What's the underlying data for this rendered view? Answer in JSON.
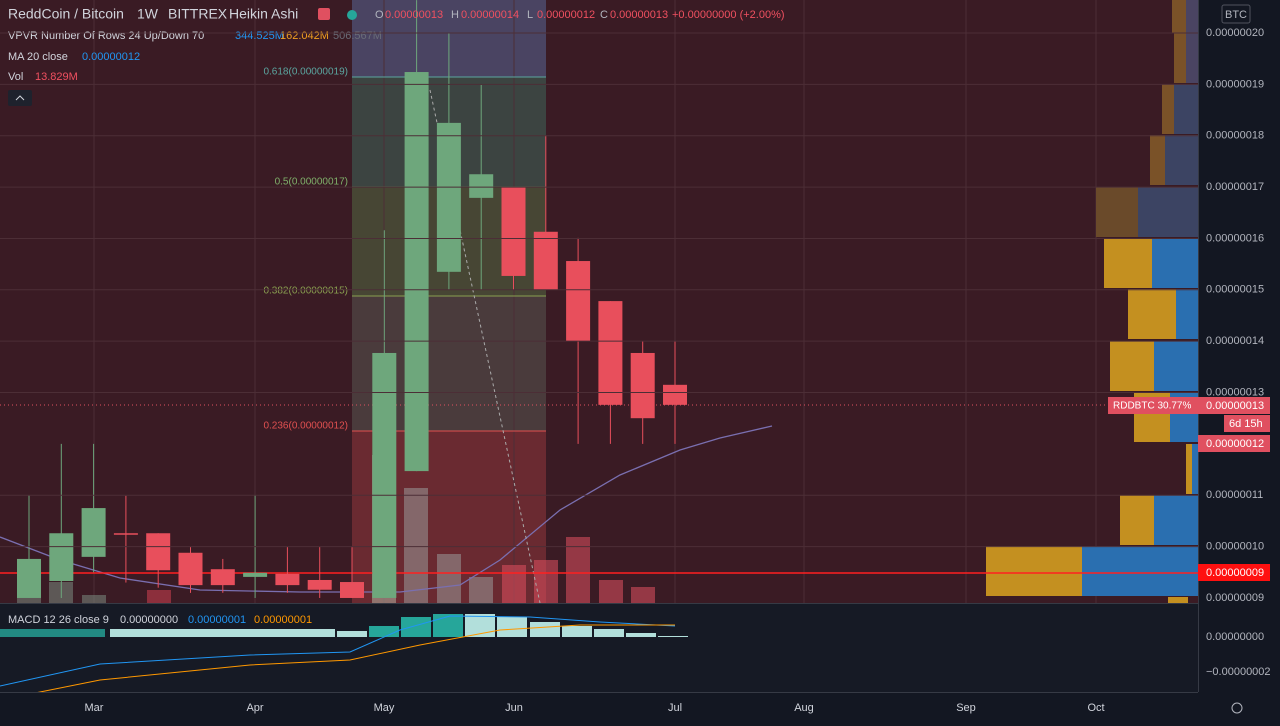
{
  "header": {
    "symbol": "ReddCoin / Bitcoin",
    "interval": "1W",
    "exchange": "BITTREX",
    "style": "Heikin Ashi",
    "o_label": "O",
    "o_value": "0.00000013",
    "h_label": "H",
    "h_value": "0.00000014",
    "l_label": "L",
    "l_value": "0.00000012",
    "c_label": "C",
    "c_value": "0.00000013",
    "change": "+0.00000000 (+2.00%)"
  },
  "indicators": {
    "vpvr": "VPVR Number Of Rows 24 Up/Down 70",
    "vpvr_up": "344.525M",
    "vpvr_down": "162.042M",
    "vpvr_total": "506.567M",
    "ma": "MA 20 close",
    "ma_value": "0.00000012",
    "vol": "Vol",
    "vol_value": "13.829M",
    "macd": "MACD 12 26 close 9",
    "macd_hist": "0.00000000",
    "macd_line": "0.00000001",
    "macd_signal": "0.00000001"
  },
  "fib_levels": [
    "0.618(0.00000019)",
    "0.5(0.00000017)",
    "0.382(0.00000015)",
    "0.236(0.00000012)"
  ],
  "price_axis": {
    "currency": "BTC",
    "ylim": [
      8.9e-08,
      2.064e-07
    ],
    "ticks": [
      {
        "value": 2e-07,
        "label": "0.00000020"
      },
      {
        "value": 1.9e-07,
        "label": "0.00000019"
      },
      {
        "value": 1.8e-07,
        "label": "0.00000018"
      },
      {
        "value": 1.7e-07,
        "label": "0.00000017"
      },
      {
        "value": 1.6e-07,
        "label": "0.00000016"
      },
      {
        "value": 1.5e-07,
        "label": "0.00000015"
      },
      {
        "value": 1.4e-07,
        "label": "0.00000014"
      },
      {
        "value": 1.3e-07,
        "label": "0.00000013"
      },
      {
        "value": 1.1e-07,
        "label": "0.00000011"
      },
      {
        "value": 1e-07,
        "label": "0.00000010"
      }
    ],
    "last_price_tag": "RDDBTC 30.77%",
    "last_price": "0.00000013",
    "countdown": "6d 15h",
    "ma_tag": "0.00000012",
    "level_tag": "0.00000009"
  },
  "macd_axis": {
    "ticks": [
      {
        "value": 0,
        "label": "0.00000000"
      },
      {
        "value": -2e-08,
        "label": "−0.00000002"
      }
    ]
  },
  "time_axis": [
    "Mar",
    "Apr",
    "May",
    "Jun",
    "Jul",
    "Aug",
    "Sep",
    "Oct"
  ],
  "candles": {
    "open": [
      9e-08,
      9.33e-08,
      9.8e-08,
      1.026e-07,
      1.026e-07,
      9.88e-08,
      9.56e-08,
      9.41e-08,
      9.47e-08,
      9.35e-08,
      9.31e-08,
      9e-08,
      1.147e-07,
      1.535e-07,
      1.679e-07,
      1.7e-07,
      1.613e-07,
      1.556e-07,
      1.478e-07,
      1.377e-07,
      1.315e-07
    ],
    "high": [
      1.1e-07,
      1.2e-07,
      1.2e-07,
      1.099e-07,
      1.026e-07,
      9.99e-08,
      9.76e-08,
      1.1e-07,
      9.99e-08,
      9.99e-08,
      9.99e-08,
      1.616e-07,
      2.064e-07,
      2e-07,
      1.899e-07,
      1.7e-07,
      1.801e-07,
      1.601e-07,
      1.478e-07,
      1.4e-07,
      1.4e-07
    ],
    "low": [
      9e-08,
      9e-08,
      9.5e-08,
      9.3e-08,
      9.2e-08,
      9.1e-08,
      9.1e-08,
      9e-08,
      9.1e-08,
      9e-08,
      9e-08,
      9e-08,
      1.147e-07,
      1.5e-07,
      1.5e-07,
      1.5e-07,
      1.5e-07,
      1.2e-07,
      1.2e-07,
      1.2e-07,
      1.2e-07
    ],
    "close": [
      9.76e-08,
      1.026e-07,
      1.075e-07,
      1.024e-07,
      9.54e-08,
      9.25e-08,
      9.25e-08,
      9.49e-08,
      9.25e-08,
      9.16e-08,
      9e-08,
      1.377e-07,
      1.924e-07,
      1.825e-07,
      1.725e-07,
      1.527e-07,
      1.5e-07,
      1.4e-07,
      1.276e-07,
      1.25e-07,
      1.276e-07
    ]
  }
}
